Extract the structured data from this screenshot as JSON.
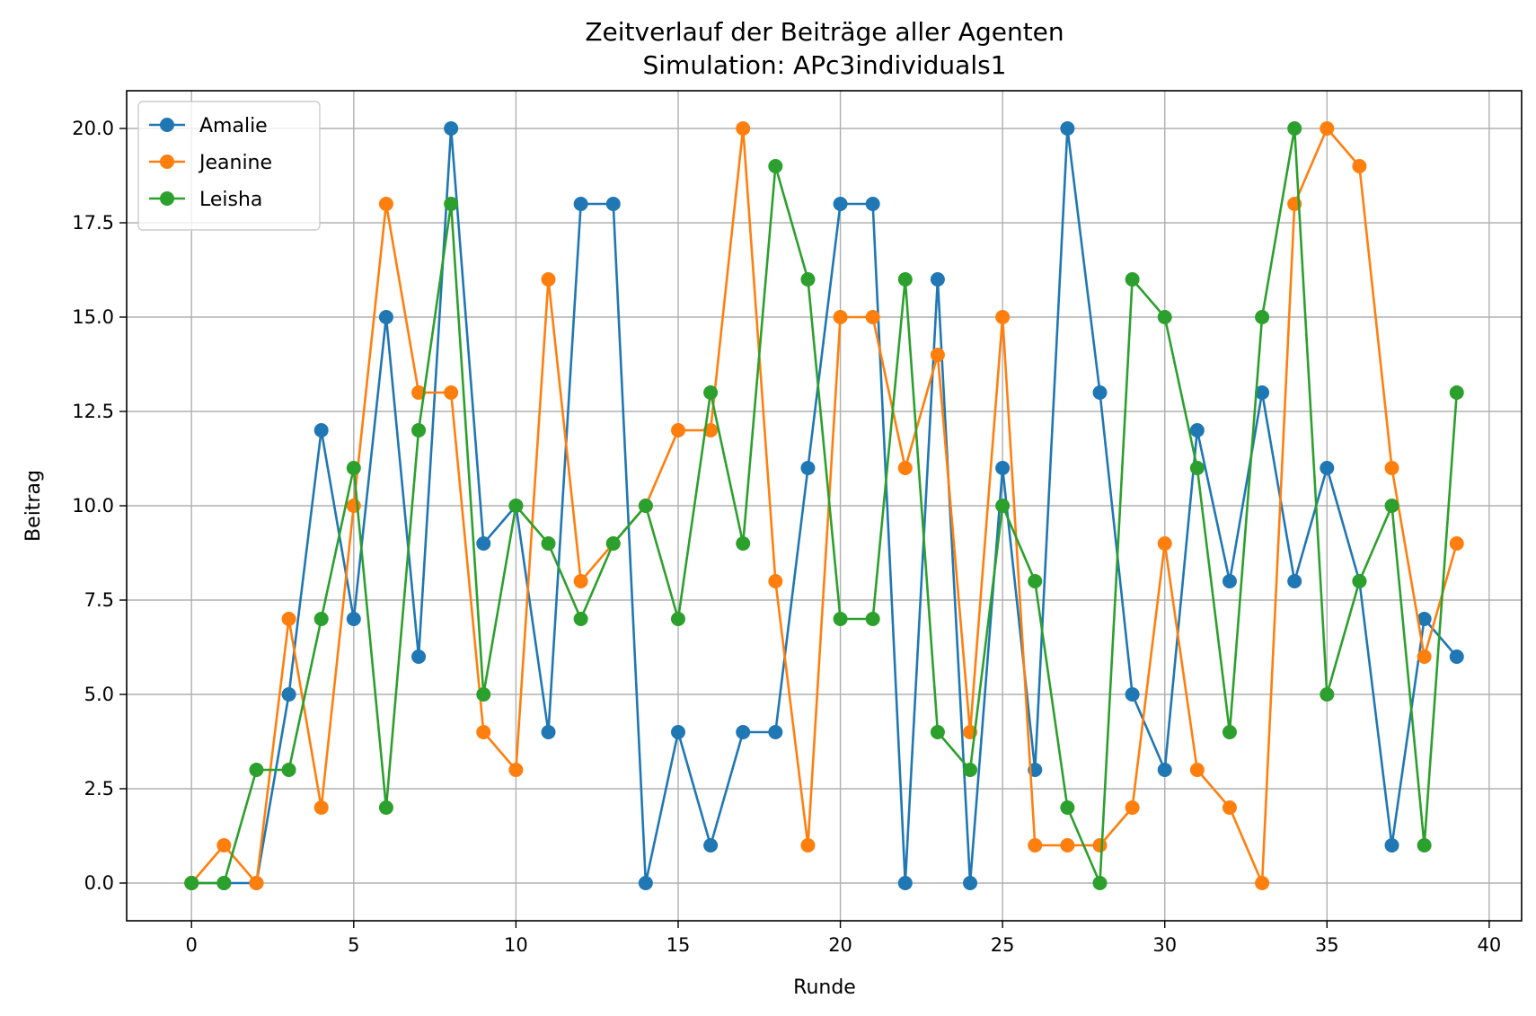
{
  "chart_data": {
    "type": "line",
    "title": "Zeitverlauf der Beiträge aller Agenten",
    "subtitle": "Simulation: APc3individuals1",
    "xlabel": "Runde",
    "ylabel": "Beitrag",
    "xlim": [
      -2,
      41
    ],
    "ylim": [
      -1,
      21
    ],
    "xticks": [
      0,
      5,
      10,
      15,
      20,
      25,
      30,
      35,
      40
    ],
    "xtick_labels": [
      "0",
      "5",
      "10",
      "15",
      "20",
      "25",
      "30",
      "35",
      "40"
    ],
    "yticks": [
      0,
      2.5,
      5,
      7.5,
      10,
      12.5,
      15,
      17.5,
      20
    ],
    "ytick_labels": [
      "0.0",
      "2.5",
      "5.0",
      "7.5",
      "10.0",
      "12.5",
      "15.0",
      "17.5",
      "20.0"
    ],
    "grid": true,
    "legend_position": "top-left",
    "x": [
      0,
      1,
      2,
      3,
      4,
      5,
      6,
      7,
      8,
      9,
      10,
      11,
      12,
      13,
      14,
      15,
      16,
      17,
      18,
      19,
      20,
      21,
      22,
      23,
      24,
      25,
      26,
      27,
      28,
      29,
      30,
      31,
      32,
      33,
      34,
      35,
      36,
      37,
      38,
      39
    ],
    "series": [
      {
        "name": "Amalie",
        "color": "#1f77b4",
        "values": [
          0,
          0,
          0,
          5,
          12,
          7,
          15,
          6,
          20,
          9,
          10,
          4,
          18,
          18,
          0,
          4,
          1,
          4,
          4,
          11,
          18,
          18,
          0,
          16,
          0,
          11,
          3,
          20,
          13,
          5,
          3,
          12,
          8,
          13,
          8,
          11,
          8,
          1,
          7,
          6
        ]
      },
      {
        "name": "Jeanine",
        "color": "#ff7f0e",
        "values": [
          0,
          1,
          0,
          7,
          2,
          10,
          18,
          13,
          13,
          4,
          3,
          16,
          8,
          9,
          10,
          12,
          12,
          20,
          8,
          1,
          15,
          15,
          11,
          14,
          4,
          15,
          1,
          1,
          1,
          2,
          9,
          3,
          2,
          0,
          18,
          20,
          19,
          11,
          6,
          9
        ]
      },
      {
        "name": "Leisha",
        "color": "#2ca02c",
        "values": [
          0,
          0,
          3,
          3,
          7,
          11,
          2,
          12,
          18,
          5,
          10,
          9,
          7,
          9,
          10,
          7,
          13,
          9,
          19,
          16,
          7,
          7,
          16,
          4,
          3,
          10,
          8,
          2,
          0,
          16,
          15,
          11,
          4,
          15,
          20,
          5,
          8,
          10,
          1,
          13
        ]
      }
    ]
  }
}
